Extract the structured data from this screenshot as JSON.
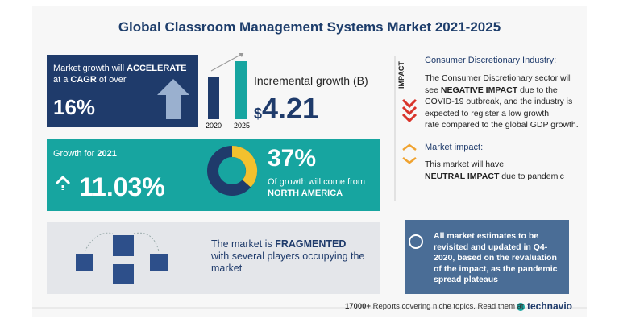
{
  "title": "Global Classroom Management Systems Market 2021-2025",
  "cagr": {
    "lead": "Market growth will",
    "accelerate": "ACCELERATE",
    "at_a": "at a",
    "cagr": "CAGR",
    "of_over": "of over",
    "value": "16%"
  },
  "incremental": {
    "years": [
      "2020",
      "2025"
    ],
    "label": "Incremental growth (B)",
    "currency": "$",
    "value": "4.21"
  },
  "growth_2021": {
    "label": "Growth for",
    "year": "2021",
    "value": "11.03%"
  },
  "region": {
    "share": "37%",
    "text": "Of growth will come from",
    "name": "NORTH AMERICA"
  },
  "fragmented": {
    "pre": "The market is",
    "bold": "FRAGMENTED",
    "rest": [
      "with several players occupying the",
      "market"
    ]
  },
  "impact": {
    "tag": "IMPACT",
    "heading": "Consumer Discretionary Industry:",
    "line1": "The Consumer Discretionary sector will",
    "line2": [
      "see",
      "NEGATIVE IMPACT",
      "due to the"
    ],
    "lines": [
      "COVID-19 outbreak, and the industry is",
      "expected to register a low growth",
      "rate compared to the global GDP growth."
    ]
  },
  "market_impact": {
    "heading": "Market impact:",
    "line1": "This market will have",
    "bold": "NEUTRAL IMPACT",
    "rest": "due to pandemic"
  },
  "note": {
    "lines": [
      "All market estimates to be",
      "revisited and updated in Q4-",
      "2020, based on the revaluation",
      "of the impact, as the pandemic",
      "spread plateaus"
    ]
  },
  "footer": {
    "count": "17000+",
    "text": "Reports covering niche topics. Read them at",
    "brand": "technavio"
  }
}
